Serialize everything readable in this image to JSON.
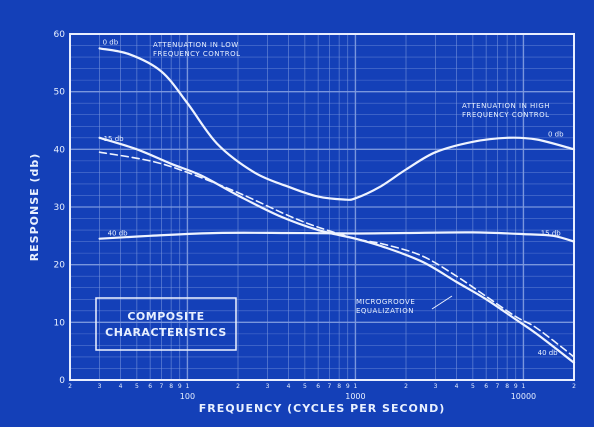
{
  "chart_data": {
    "type": "line",
    "xscale": "log",
    "xlim": [
      20,
      20000
    ],
    "ylim": [
      0,
      60
    ],
    "grid": true,
    "xlabel": "FREQUENCY (CYCLES PER SECOND)",
    "ylabel": "RESPONSE (db)",
    "y_ticks": [
      0,
      10,
      20,
      30,
      40,
      50,
      60
    ],
    "y_tick_labels": [
      "0",
      "10",
      "20",
      "30",
      "40",
      "50",
      "60"
    ],
    "x_major_ticks": [
      100,
      1000,
      10000
    ],
    "x_major_labels": [
      "100",
      "1000",
      "10000"
    ],
    "x_minor_digits": [
      "2",
      "3",
      "4",
      "5",
      "6",
      "7",
      "8",
      "9",
      "1"
    ],
    "annotations": {
      "low_control": "ATTENUATION IN LOW FREQUENCY CONTROL",
      "high_control": "ATTENUATION IN HIGH FREQUENCY CONTROL",
      "microgroove": "MICROGROOVE EQUALIZATION",
      "box_title": "COMPOSITE CHARACTERISTICS"
    },
    "series": [
      {
        "name": "0 db",
        "label_pos": "left",
        "points": [
          [
            30,
            57.5
          ],
          [
            45,
            56.5
          ],
          [
            70,
            53.5
          ],
          [
            100,
            48
          ],
          [
            150,
            41
          ],
          [
            250,
            36
          ],
          [
            400,
            33.5
          ],
          [
            600,
            31.8
          ],
          [
            850,
            31.3
          ],
          [
            1000,
            31.5
          ],
          [
            1400,
            33.5
          ],
          [
            2000,
            36.5
          ],
          [
            3000,
            39.5
          ],
          [
            5000,
            41.3
          ],
          [
            8000,
            42
          ],
          [
            12000,
            41.7
          ],
          [
            20000,
            40
          ]
        ]
      },
      {
        "name": "0 db",
        "label_pos": "right",
        "points": []
      },
      {
        "name": "15 db",
        "label_pos": "left",
        "points": [
          [
            30,
            42
          ],
          [
            50,
            40
          ],
          [
            80,
            37.5
          ],
          [
            120,
            35.5
          ],
          [
            200,
            32
          ],
          [
            350,
            28.5
          ],
          [
            600,
            26
          ],
          [
            1000,
            24.5
          ],
          [
            1500,
            23
          ],
          [
            2500,
            20.5
          ],
          [
            4000,
            17
          ],
          [
            6000,
            14
          ],
          [
            9000,
            10.5
          ],
          [
            12000,
            8
          ],
          [
            20000,
            3
          ]
        ]
      },
      {
        "name": "15 db",
        "label_pos": "right",
        "points": [
          [
            30,
            24.5
          ],
          [
            60,
            25
          ],
          [
            150,
            25.5
          ],
          [
            400,
            25.5
          ],
          [
            1000,
            25.4
          ],
          [
            2000,
            25.5
          ],
          [
            5000,
            25.6
          ],
          [
            10000,
            25.3
          ],
          [
            15000,
            25
          ],
          [
            20000,
            24
          ]
        ]
      },
      {
        "name": "MICROGROOVE EQUALIZATION",
        "label_pos": "none",
        "dashed": true,
        "points": [
          [
            30,
            39.5
          ],
          [
            60,
            38
          ],
          [
            100,
            36
          ],
          [
            200,
            32.5
          ],
          [
            400,
            28.5
          ],
          [
            600,
            26.5
          ],
          [
            1000,
            24.5
          ],
          [
            1500,
            23.5
          ],
          [
            2500,
            21.5
          ],
          [
            4000,
            18
          ],
          [
            6000,
            14.5
          ],
          [
            9000,
            11
          ],
          [
            12000,
            9
          ],
          [
            20000,
            4
          ]
        ]
      },
      {
        "name": "40 db",
        "label_pos": "right",
        "points": []
      }
    ],
    "colors": {
      "background": "#1440b8",
      "grid": "#7f9be0",
      "line": "#eef3ff",
      "frame": "#e8eeff"
    }
  }
}
